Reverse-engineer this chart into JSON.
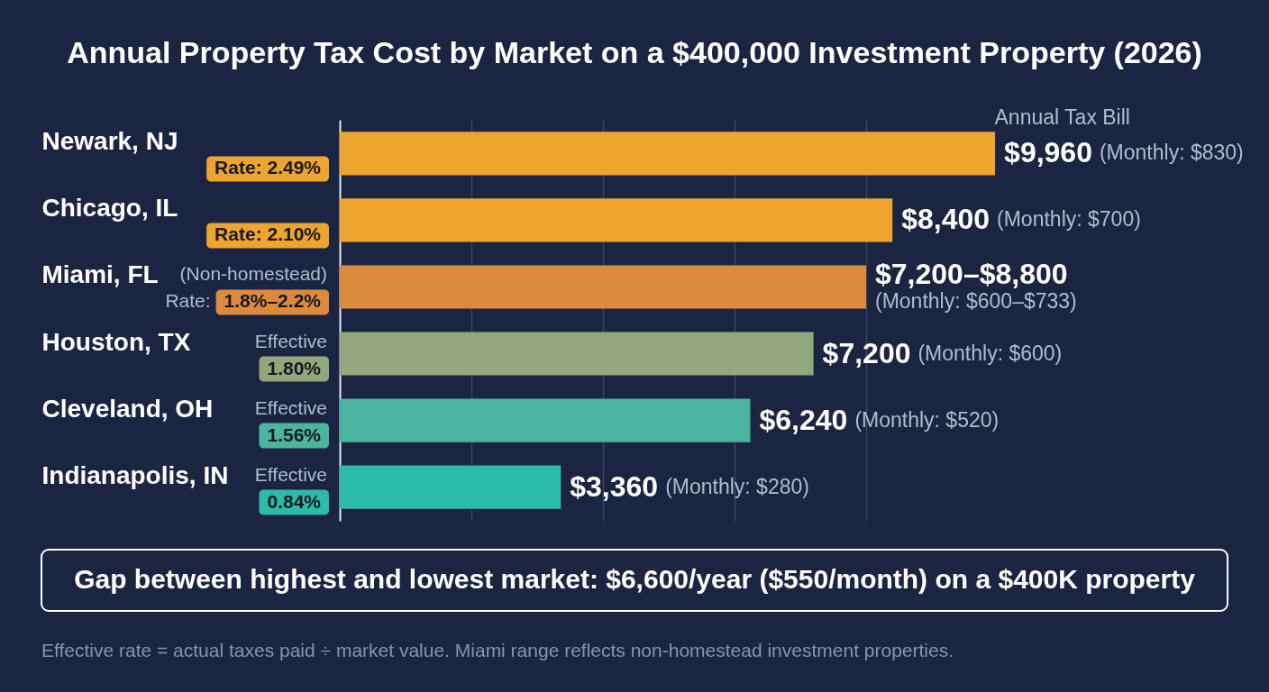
{
  "chart_data": {
    "type": "bar",
    "orientation": "horizontal",
    "title": "Annual Property Tax Cost by Market on a $400,000 Investment Property (2026)",
    "xlabel": "Annual Tax Bill",
    "categories": [
      "Newark, NJ",
      "Chicago, IL",
      "Miami, FL",
      "Houston, TX",
      "Cleveland, OH",
      "Indianapolis, IN"
    ],
    "values": [
      9960,
      8400,
      8000,
      7200,
      6240,
      3360
    ],
    "colors": [
      "#eda52f",
      "#eda52f",
      "#dc8a3e",
      "#93a67c",
      "#4cb5a0",
      "#2bbba8"
    ],
    "value_labels": [
      "$9,960",
      "$8,400",
      "$7,200–$8,800",
      "$7,200",
      "$6,240",
      "$3,360"
    ],
    "xlim": [
      0,
      10000
    ],
    "xticks": [
      {
        "value": 2000,
        "label": null
      },
      {
        "value": 4000,
        "label": null
      },
      {
        "value": 6000,
        "label": null
      },
      {
        "value": 8000,
        "label": null
      }
    ],
    "grid": "x",
    "tick_labels": "y",
    "annotations": [
      "Rate: 2.49%",
      "(Monthly: $830)",
      "Rate: 2.10%",
      "(Monthly: $700)",
      "(Non-homestead)",
      "Rate:",
      "1.8%–2.2%",
      "(Monthly: $600–$733)",
      "Effective",
      "1.80%",
      "(Monthly: $600)",
      "Effective",
      "1.56%",
      "(Monthly: $520)",
      "Effective",
      "0.84%",
      "(Monthly: $280)",
      "Gap between highest and lowest market: $6,600/year ($550/month) on a $400K property",
      "Effective rate = actual taxes paid ÷ market value. Miami range reflects non-homestead investment properties."
    ]
  }
}
